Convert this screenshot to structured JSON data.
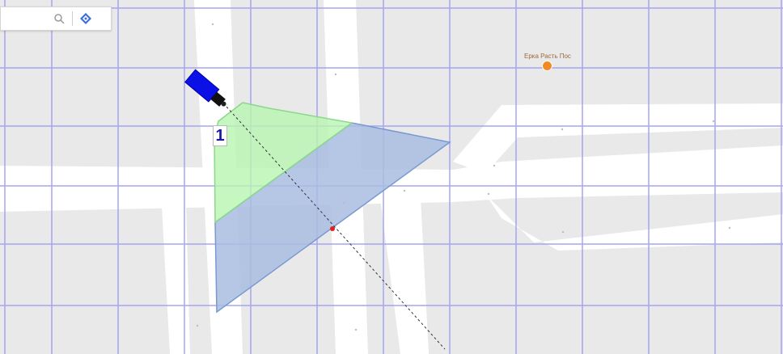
{
  "toolbar": {
    "search_icon": "search-icon",
    "locate_icon": "locate-icon"
  },
  "camera": {
    "number": "1",
    "body_color": "#0b10e6"
  },
  "poi": {
    "label": "Ерка Расть Пос",
    "icon": "restaurant-icon",
    "color": "#f08a24"
  },
  "colors": {
    "map_background": "#e9e9e9",
    "road": "#ffffff",
    "grid": "#a6a6f0",
    "fov_near": "#b8f5b0",
    "fov_far": "#a8bde0",
    "fov_edge": "#7a98d2"
  }
}
